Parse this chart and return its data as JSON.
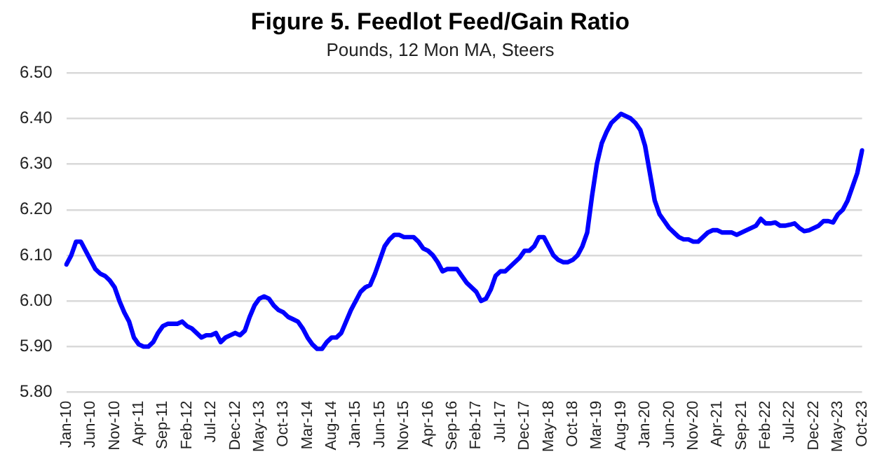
{
  "chart_data": {
    "type": "line",
    "title": "Figure 5. Feedlot Feed/Gain Ratio",
    "subtitle": "Pounds, 12 Mon MA, Steers",
    "categories": [
      "Jan-10",
      null,
      null,
      null,
      null,
      "Jun-10",
      null,
      null,
      null,
      null,
      "Nov-10",
      null,
      null,
      null,
      null,
      "Apr-11",
      null,
      null,
      null,
      null,
      "Sep-11",
      null,
      null,
      null,
      null,
      "Feb-12",
      null,
      null,
      null,
      null,
      "Jul-12",
      null,
      null,
      null,
      null,
      "Dec-12",
      null,
      null,
      null,
      null,
      "May-13",
      null,
      null,
      null,
      null,
      "Oct-13",
      null,
      null,
      null,
      null,
      "Mar-14",
      null,
      null,
      null,
      null,
      "Aug-14",
      null,
      null,
      null,
      null,
      "Jan-15",
      null,
      null,
      null,
      null,
      "Jun-15",
      null,
      null,
      null,
      null,
      "Nov-15",
      null,
      null,
      null,
      null,
      "Apr-16",
      null,
      null,
      null,
      null,
      "Sep-16",
      null,
      null,
      null,
      null,
      "Feb-17",
      null,
      null,
      null,
      null,
      "Jul-17",
      null,
      null,
      null,
      null,
      "Dec-17",
      null,
      null,
      null,
      null,
      "May-18",
      null,
      null,
      null,
      null,
      "Oct-18",
      null,
      null,
      null,
      null,
      "Mar-19",
      null,
      null,
      null,
      null,
      "Aug-19",
      null,
      null,
      null,
      null,
      "Jan-20",
      null,
      null,
      null,
      null,
      "Jun-20",
      null,
      null,
      null,
      null,
      "Nov-20",
      null,
      null,
      null,
      null,
      "Apr-21",
      null,
      null,
      null,
      null,
      "Sep-21",
      null,
      null,
      null,
      null,
      "Feb-22",
      null,
      null,
      null,
      null,
      "Jul-22",
      null,
      null,
      null,
      null,
      "Dec-22",
      null,
      null,
      null,
      null,
      "May-23",
      null,
      null,
      null,
      null,
      "Oct-23"
    ],
    "series": [
      {
        "color": "#0000ff",
        "values": [
          6.08,
          6.1,
          6.13,
          6.13,
          6.11,
          6.09,
          6.07,
          6.06,
          6.055,
          6.045,
          6.03,
          6.0,
          5.975,
          5.955,
          5.92,
          5.905,
          5.9,
          5.9,
          5.91,
          5.93,
          5.945,
          5.95,
          5.95,
          5.95,
          5.955,
          5.945,
          5.94,
          5.93,
          5.92,
          5.925,
          5.925,
          5.93,
          5.91,
          5.92,
          5.925,
          5.93,
          5.925,
          5.935,
          5.965,
          5.99,
          6.005,
          6.01,
          6.005,
          5.99,
          5.98,
          5.975,
          5.965,
          5.96,
          5.955,
          5.94,
          5.92,
          5.905,
          5.895,
          5.895,
          5.91,
          5.92,
          5.92,
          5.93,
          5.955,
          5.98,
          6.0,
          6.02,
          6.03,
          6.035,
          6.06,
          6.09,
          6.12,
          6.135,
          6.145,
          6.145,
          6.14,
          6.14,
          6.14,
          6.13,
          6.115,
          6.11,
          6.1,
          6.085,
          6.065,
          6.07,
          6.07,
          6.07,
          6.055,
          6.04,
          6.03,
          6.02,
          6.0,
          6.005,
          6.025,
          6.055,
          6.065,
          6.065,
          6.075,
          6.085,
          6.095,
          6.11,
          6.11,
          6.12,
          6.14,
          6.14,
          6.12,
          6.1,
          6.09,
          6.085,
          6.085,
          6.09,
          6.1,
          6.12,
          6.15,
          6.23,
          6.3,
          6.345,
          6.37,
          6.39,
          6.4,
          6.41,
          6.405,
          6.4,
          6.39,
          6.375,
          6.34,
          6.28,
          6.22,
          6.19,
          6.175,
          6.16,
          6.15,
          6.14,
          6.135,
          6.135,
          6.13,
          6.13,
          6.14,
          6.15,
          6.155,
          6.155,
          6.15,
          6.15,
          6.15,
          6.145,
          6.15,
          6.155,
          6.16,
          6.165,
          6.18,
          6.17,
          6.17,
          6.172,
          6.165,
          6.165,
          6.167,
          6.17,
          6.16,
          6.153,
          6.155,
          6.16,
          6.165,
          6.175,
          6.175,
          6.172,
          6.19,
          6.2,
          6.22,
          6.25,
          6.28,
          6.33
        ]
      }
    ],
    "ylim": [
      5.8,
      6.5
    ],
    "yticks": [
      {
        "value": 5.8,
        "label": "5.80"
      },
      {
        "value": 5.9,
        "label": "5.90"
      },
      {
        "value": 6.0,
        "label": "6.00"
      },
      {
        "value": 6.1,
        "label": "6.10"
      },
      {
        "value": 6.2,
        "label": "6.20"
      },
      {
        "value": 6.3,
        "label": "6.30"
      },
      {
        "value": 6.4,
        "label": "6.40"
      },
      {
        "value": 6.5,
        "label": "6.50"
      }
    ],
    "grid": "y",
    "legend": false,
    "marker": "none",
    "line_style": "solid"
  }
}
